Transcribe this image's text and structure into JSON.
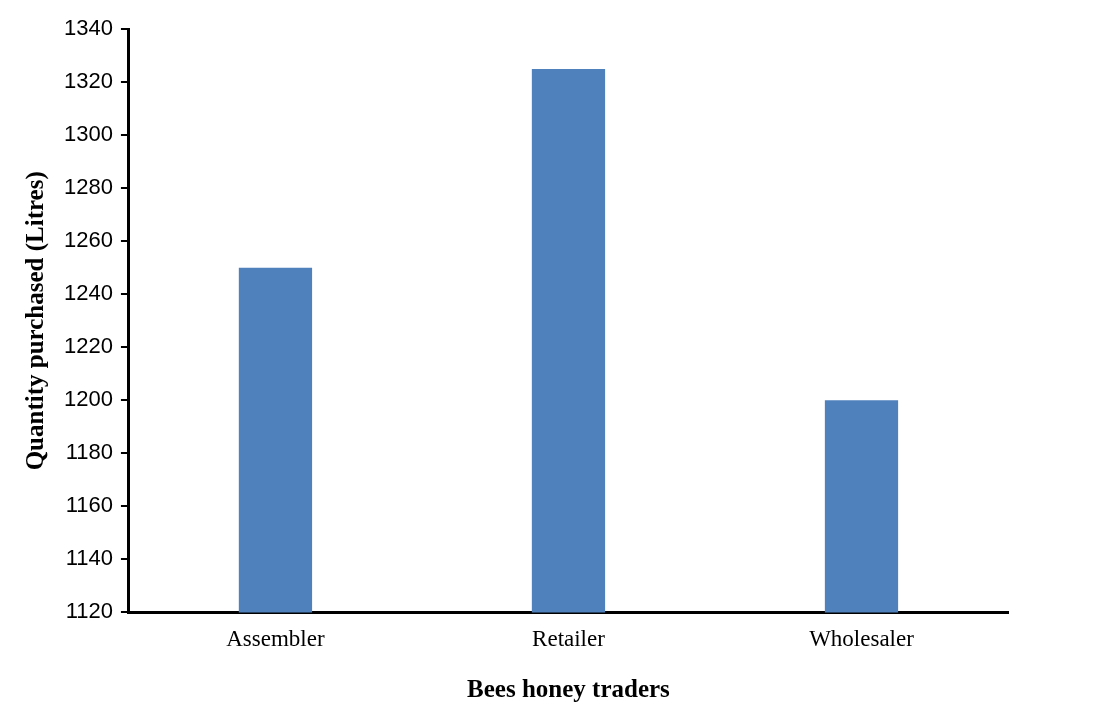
{
  "chart_data": {
    "type": "bar",
    "xlabel": "Bees honey traders",
    "ylabel": "Quantity purchased (Litres)",
    "categories": [
      "Assembler",
      "Retailer",
      "Wholesaler"
    ],
    "values": [
      1250,
      1325,
      1200
    ],
    "color": "#4f81bd",
    "ylim": [
      1120,
      1340
    ],
    "yticks": [
      1120,
      1140,
      1160,
      1180,
      1200,
      1220,
      1240,
      1260,
      1280,
      1300,
      1320,
      1340
    ],
    "grid": false,
    "legend": false
  }
}
